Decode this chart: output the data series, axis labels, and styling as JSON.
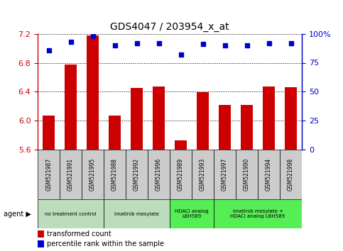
{
  "title": "GDS4047 / 203954_x_at",
  "samples": [
    "GSM521987",
    "GSM521991",
    "GSM521995",
    "GSM521988",
    "GSM521992",
    "GSM521996",
    "GSM521989",
    "GSM521993",
    "GSM521997",
    "GSM521990",
    "GSM521994",
    "GSM521998"
  ],
  "bar_values": [
    6.07,
    6.78,
    7.18,
    6.07,
    6.45,
    6.47,
    5.72,
    6.39,
    6.22,
    6.22,
    6.47,
    6.46
  ],
  "dot_values": [
    86,
    93,
    98,
    90,
    92,
    92,
    82,
    91,
    90,
    90,
    92,
    92
  ],
  "ylim_left": [
    5.6,
    7.2
  ],
  "ylim_right": [
    0,
    100
  ],
  "yticks_left": [
    5.6,
    6.0,
    6.4,
    6.8,
    7.2
  ],
  "yticks_right": [
    0,
    25,
    50,
    75,
    100
  ],
  "ytick_labels_right": [
    "0",
    "25",
    "50",
    "75",
    "100%"
  ],
  "bar_color": "#cc0000",
  "dot_color": "#0000cc",
  "bg_color_figure": "#ffffff",
  "bg_color_plot": "#ffffff",
  "tick_bg_color": "#cccccc",
  "agent_groups": [
    {
      "label": "no treatment control",
      "start": 0,
      "end": 3,
      "color": "#bbddbb"
    },
    {
      "label": "imatinib mesylate",
      "start": 3,
      "end": 6,
      "color": "#bbddbb"
    },
    {
      "label": "HDACi analog\nLBH589",
      "start": 6,
      "end": 8,
      "color": "#55ee55"
    },
    {
      "label": "imatinib mesylate +\nHDACi analog LBH589",
      "start": 8,
      "end": 12,
      "color": "#55ee55"
    }
  ],
  "legend_bar_label": "transformed count",
  "legend_dot_label": "percentile rank within the sample",
  "xlabel_color": "#cc0000",
  "ylabel_right_color": "#0000cc"
}
